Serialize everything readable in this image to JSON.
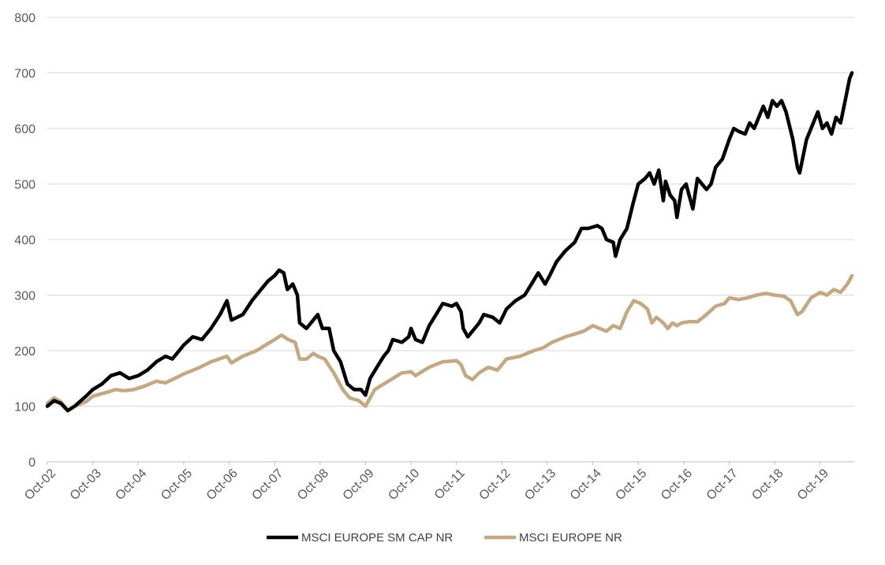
{
  "chart_data": {
    "type": "line",
    "title": "",
    "xlabel": "",
    "ylabel": "",
    "ylim": [
      0,
      800
    ],
    "y_ticks": [
      "0",
      "100",
      "200",
      "300",
      "400",
      "500",
      "600",
      "700",
      "800"
    ],
    "x_ticks": [
      "Oct-02",
      "Oct-03",
      "Oct-04",
      "Oct-05",
      "Oct-06",
      "Oct-07",
      "Oct-08",
      "Oct-09",
      "Oct-10",
      "Oct-11",
      "Oct-12",
      "Oct-13",
      "Oct-14",
      "Oct-15",
      "Oct-16",
      "Oct-17",
      "Oct-18",
      "Oct-19"
    ],
    "grid": "horizontal",
    "legend_position": "bottom",
    "x_unit": "years since Oct-02",
    "series": [
      {
        "name": "MSCI EUROPE SM CAP NR",
        "color": "#000000",
        "points": [
          [
            0,
            100
          ],
          [
            0.15,
            110
          ],
          [
            0.3,
            105
          ],
          [
            0.45,
            92
          ],
          [
            0.6,
            100
          ],
          [
            0.85,
            118
          ],
          [
            1.0,
            130
          ],
          [
            1.2,
            140
          ],
          [
            1.4,
            155
          ],
          [
            1.6,
            160
          ],
          [
            1.8,
            150
          ],
          [
            2.0,
            155
          ],
          [
            2.2,
            165
          ],
          [
            2.4,
            180
          ],
          [
            2.6,
            190
          ],
          [
            2.75,
            185
          ],
          [
            3.0,
            210
          ],
          [
            3.2,
            225
          ],
          [
            3.4,
            220
          ],
          [
            3.6,
            240
          ],
          [
            3.8,
            265
          ],
          [
            3.95,
            290
          ],
          [
            4.05,
            255
          ],
          [
            4.3,
            265
          ],
          [
            4.5,
            290
          ],
          [
            4.7,
            310
          ],
          [
            4.85,
            325
          ],
          [
            5.0,
            335
          ],
          [
            5.1,
            345
          ],
          [
            5.2,
            340
          ],
          [
            5.28,
            310
          ],
          [
            5.4,
            320
          ],
          [
            5.5,
            300
          ],
          [
            5.55,
            250
          ],
          [
            5.7,
            240
          ],
          [
            5.85,
            255
          ],
          [
            5.95,
            265
          ],
          [
            6.05,
            240
          ],
          [
            6.2,
            240
          ],
          [
            6.3,
            200
          ],
          [
            6.45,
            180
          ],
          [
            6.6,
            140
          ],
          [
            6.75,
            130
          ],
          [
            6.9,
            130
          ],
          [
            7.0,
            120
          ],
          [
            7.1,
            150
          ],
          [
            7.25,
            170
          ],
          [
            7.4,
            190
          ],
          [
            7.5,
            200
          ],
          [
            7.6,
            220
          ],
          [
            7.8,
            215
          ],
          [
            7.95,
            225
          ],
          [
            8.0,
            240
          ],
          [
            8.1,
            220
          ],
          [
            8.25,
            215
          ],
          [
            8.4,
            245
          ],
          [
            8.55,
            265
          ],
          [
            8.7,
            285
          ],
          [
            8.9,
            280
          ],
          [
            9.0,
            285
          ],
          [
            9.1,
            270
          ],
          [
            9.15,
            240
          ],
          [
            9.25,
            225
          ],
          [
            9.4,
            240
          ],
          [
            9.5,
            250
          ],
          [
            9.6,
            265
          ],
          [
            9.8,
            260
          ],
          [
            9.95,
            250
          ],
          [
            10.1,
            275
          ],
          [
            10.3,
            290
          ],
          [
            10.5,
            300
          ],
          [
            10.65,
            320
          ],
          [
            10.8,
            340
          ],
          [
            10.95,
            320
          ],
          [
            11.05,
            335
          ],
          [
            11.2,
            360
          ],
          [
            11.4,
            380
          ],
          [
            11.6,
            395
          ],
          [
            11.75,
            420
          ],
          [
            11.9,
            420
          ],
          [
            12.1,
            425
          ],
          [
            12.2,
            420
          ],
          [
            12.3,
            400
          ],
          [
            12.45,
            395
          ],
          [
            12.5,
            370
          ],
          [
            12.6,
            400
          ],
          [
            12.75,
            420
          ],
          [
            12.9,
            470
          ],
          [
            13.0,
            500
          ],
          [
            13.15,
            510
          ],
          [
            13.25,
            520
          ],
          [
            13.35,
            500
          ],
          [
            13.45,
            525
          ],
          [
            13.55,
            470
          ],
          [
            13.6,
            505
          ],
          [
            13.7,
            480
          ],
          [
            13.8,
            470
          ],
          [
            13.85,
            440
          ],
          [
            13.95,
            490
          ],
          [
            14.05,
            500
          ],
          [
            14.15,
            470
          ],
          [
            14.2,
            455
          ],
          [
            14.3,
            510
          ],
          [
            14.5,
            490
          ],
          [
            14.6,
            500
          ],
          [
            14.7,
            530
          ],
          [
            14.85,
            545
          ],
          [
            15.0,
            580
          ],
          [
            15.1,
            600
          ],
          [
            15.2,
            595
          ],
          [
            15.35,
            590
          ],
          [
            15.45,
            610
          ],
          [
            15.55,
            600
          ],
          [
            15.65,
            620
          ],
          [
            15.75,
            640
          ],
          [
            15.85,
            620
          ],
          [
            15.95,
            650
          ],
          [
            16.05,
            640
          ],
          [
            16.15,
            650
          ],
          [
            16.25,
            630
          ],
          [
            16.4,
            580
          ],
          [
            16.5,
            530
          ],
          [
            16.55,
            520
          ],
          [
            16.7,
            580
          ],
          [
            16.85,
            610
          ],
          [
            16.95,
            630
          ],
          [
            17.05,
            600
          ],
          [
            17.15,
            610
          ],
          [
            17.25,
            590
          ],
          [
            17.35,
            620
          ],
          [
            17.45,
            610
          ],
          [
            17.55,
            650
          ],
          [
            17.65,
            690
          ],
          [
            17.7,
            700
          ]
        ]
      },
      {
        "name": "MSCI EUROPE NR",
        "color": "#c4a880",
        "points": [
          [
            0,
            105
          ],
          [
            0.15,
            115
          ],
          [
            0.3,
            108
          ],
          [
            0.45,
            92
          ],
          [
            0.6,
            100
          ],
          [
            0.85,
            108
          ],
          [
            1.0,
            118
          ],
          [
            1.3,
            125
          ],
          [
            1.5,
            130
          ],
          [
            1.7,
            128
          ],
          [
            1.9,
            130
          ],
          [
            2.1,
            135
          ],
          [
            2.4,
            145
          ],
          [
            2.6,
            142
          ],
          [
            2.8,
            150
          ],
          [
            3.0,
            158
          ],
          [
            3.3,
            168
          ],
          [
            3.6,
            180
          ],
          [
            3.95,
            190
          ],
          [
            4.05,
            178
          ],
          [
            4.3,
            190
          ],
          [
            4.6,
            200
          ],
          [
            4.8,
            210
          ],
          [
            5.0,
            220
          ],
          [
            5.15,
            228
          ],
          [
            5.3,
            220
          ],
          [
            5.45,
            215
          ],
          [
            5.55,
            185
          ],
          [
            5.7,
            185
          ],
          [
            5.85,
            195
          ],
          [
            5.95,
            190
          ],
          [
            6.1,
            185
          ],
          [
            6.3,
            160
          ],
          [
            6.5,
            130
          ],
          [
            6.65,
            115
          ],
          [
            6.85,
            110
          ],
          [
            7.0,
            100
          ],
          [
            7.2,
            130
          ],
          [
            7.4,
            140
          ],
          [
            7.6,
            150
          ],
          [
            7.8,
            160
          ],
          [
            8.0,
            162
          ],
          [
            8.1,
            155
          ],
          [
            8.4,
            170
          ],
          [
            8.7,
            180
          ],
          [
            9.0,
            182
          ],
          [
            9.1,
            175
          ],
          [
            9.2,
            155
          ],
          [
            9.35,
            148
          ],
          [
            9.5,
            160
          ],
          [
            9.7,
            170
          ],
          [
            9.9,
            165
          ],
          [
            10.1,
            185
          ],
          [
            10.4,
            190
          ],
          [
            10.7,
            200
          ],
          [
            10.9,
            205
          ],
          [
            11.1,
            215
          ],
          [
            11.4,
            225
          ],
          [
            11.6,
            230
          ],
          [
            11.8,
            235
          ],
          [
            12.0,
            245
          ],
          [
            12.15,
            240
          ],
          [
            12.3,
            235
          ],
          [
            12.45,
            245
          ],
          [
            12.6,
            240
          ],
          [
            12.75,
            270
          ],
          [
            12.9,
            290
          ],
          [
            13.05,
            285
          ],
          [
            13.2,
            275
          ],
          [
            13.3,
            250
          ],
          [
            13.4,
            260
          ],
          [
            13.55,
            250
          ],
          [
            13.65,
            240
          ],
          [
            13.75,
            250
          ],
          [
            13.85,
            245
          ],
          [
            13.95,
            250
          ],
          [
            14.1,
            252
          ],
          [
            14.3,
            252
          ],
          [
            14.5,
            265
          ],
          [
            14.7,
            280
          ],
          [
            14.9,
            285
          ],
          [
            15.0,
            295
          ],
          [
            15.2,
            292
          ],
          [
            15.4,
            295
          ],
          [
            15.6,
            300
          ],
          [
            15.8,
            303
          ],
          [
            16.0,
            300
          ],
          [
            16.2,
            298
          ],
          [
            16.35,
            290
          ],
          [
            16.5,
            265
          ],
          [
            16.6,
            270
          ],
          [
            16.8,
            295
          ],
          [
            17.0,
            305
          ],
          [
            17.15,
            300
          ],
          [
            17.3,
            310
          ],
          [
            17.45,
            305
          ],
          [
            17.6,
            320
          ],
          [
            17.7,
            335
          ]
        ]
      }
    ]
  }
}
